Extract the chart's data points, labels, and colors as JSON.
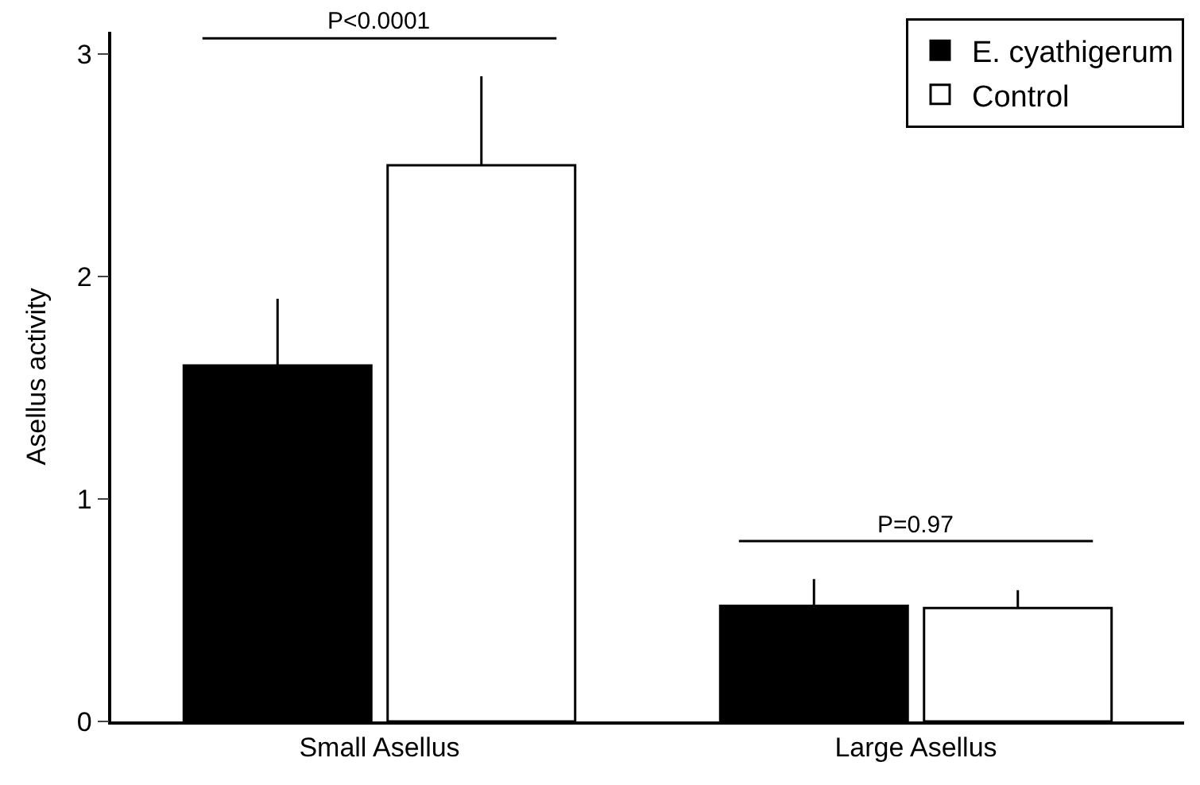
{
  "chart_data": {
    "type": "bar",
    "ylabel": "Asellus activity",
    "categories": [
      "Small Asellus",
      "Large Asellus"
    ],
    "series": [
      {
        "name": "E. cyathigerum",
        "color": "#000000",
        "values": [
          1.6,
          0.52
        ],
        "errors": [
          [
            1.6,
            1.9
          ],
          [
            0.52,
            0.64
          ]
        ]
      },
      {
        "name": "Control",
        "color": "#ffffff",
        "values": [
          2.5,
          0.51
        ],
        "errors": [
          [
            2.5,
            2.9
          ],
          [
            0.51,
            0.59
          ]
        ]
      }
    ],
    "ylim": [
      0,
      3.1
    ],
    "yticks": [
      0,
      1,
      2,
      3
    ],
    "legend": "top right",
    "annotations": [
      "P<0.0001",
      "P=0.97"
    ]
  }
}
